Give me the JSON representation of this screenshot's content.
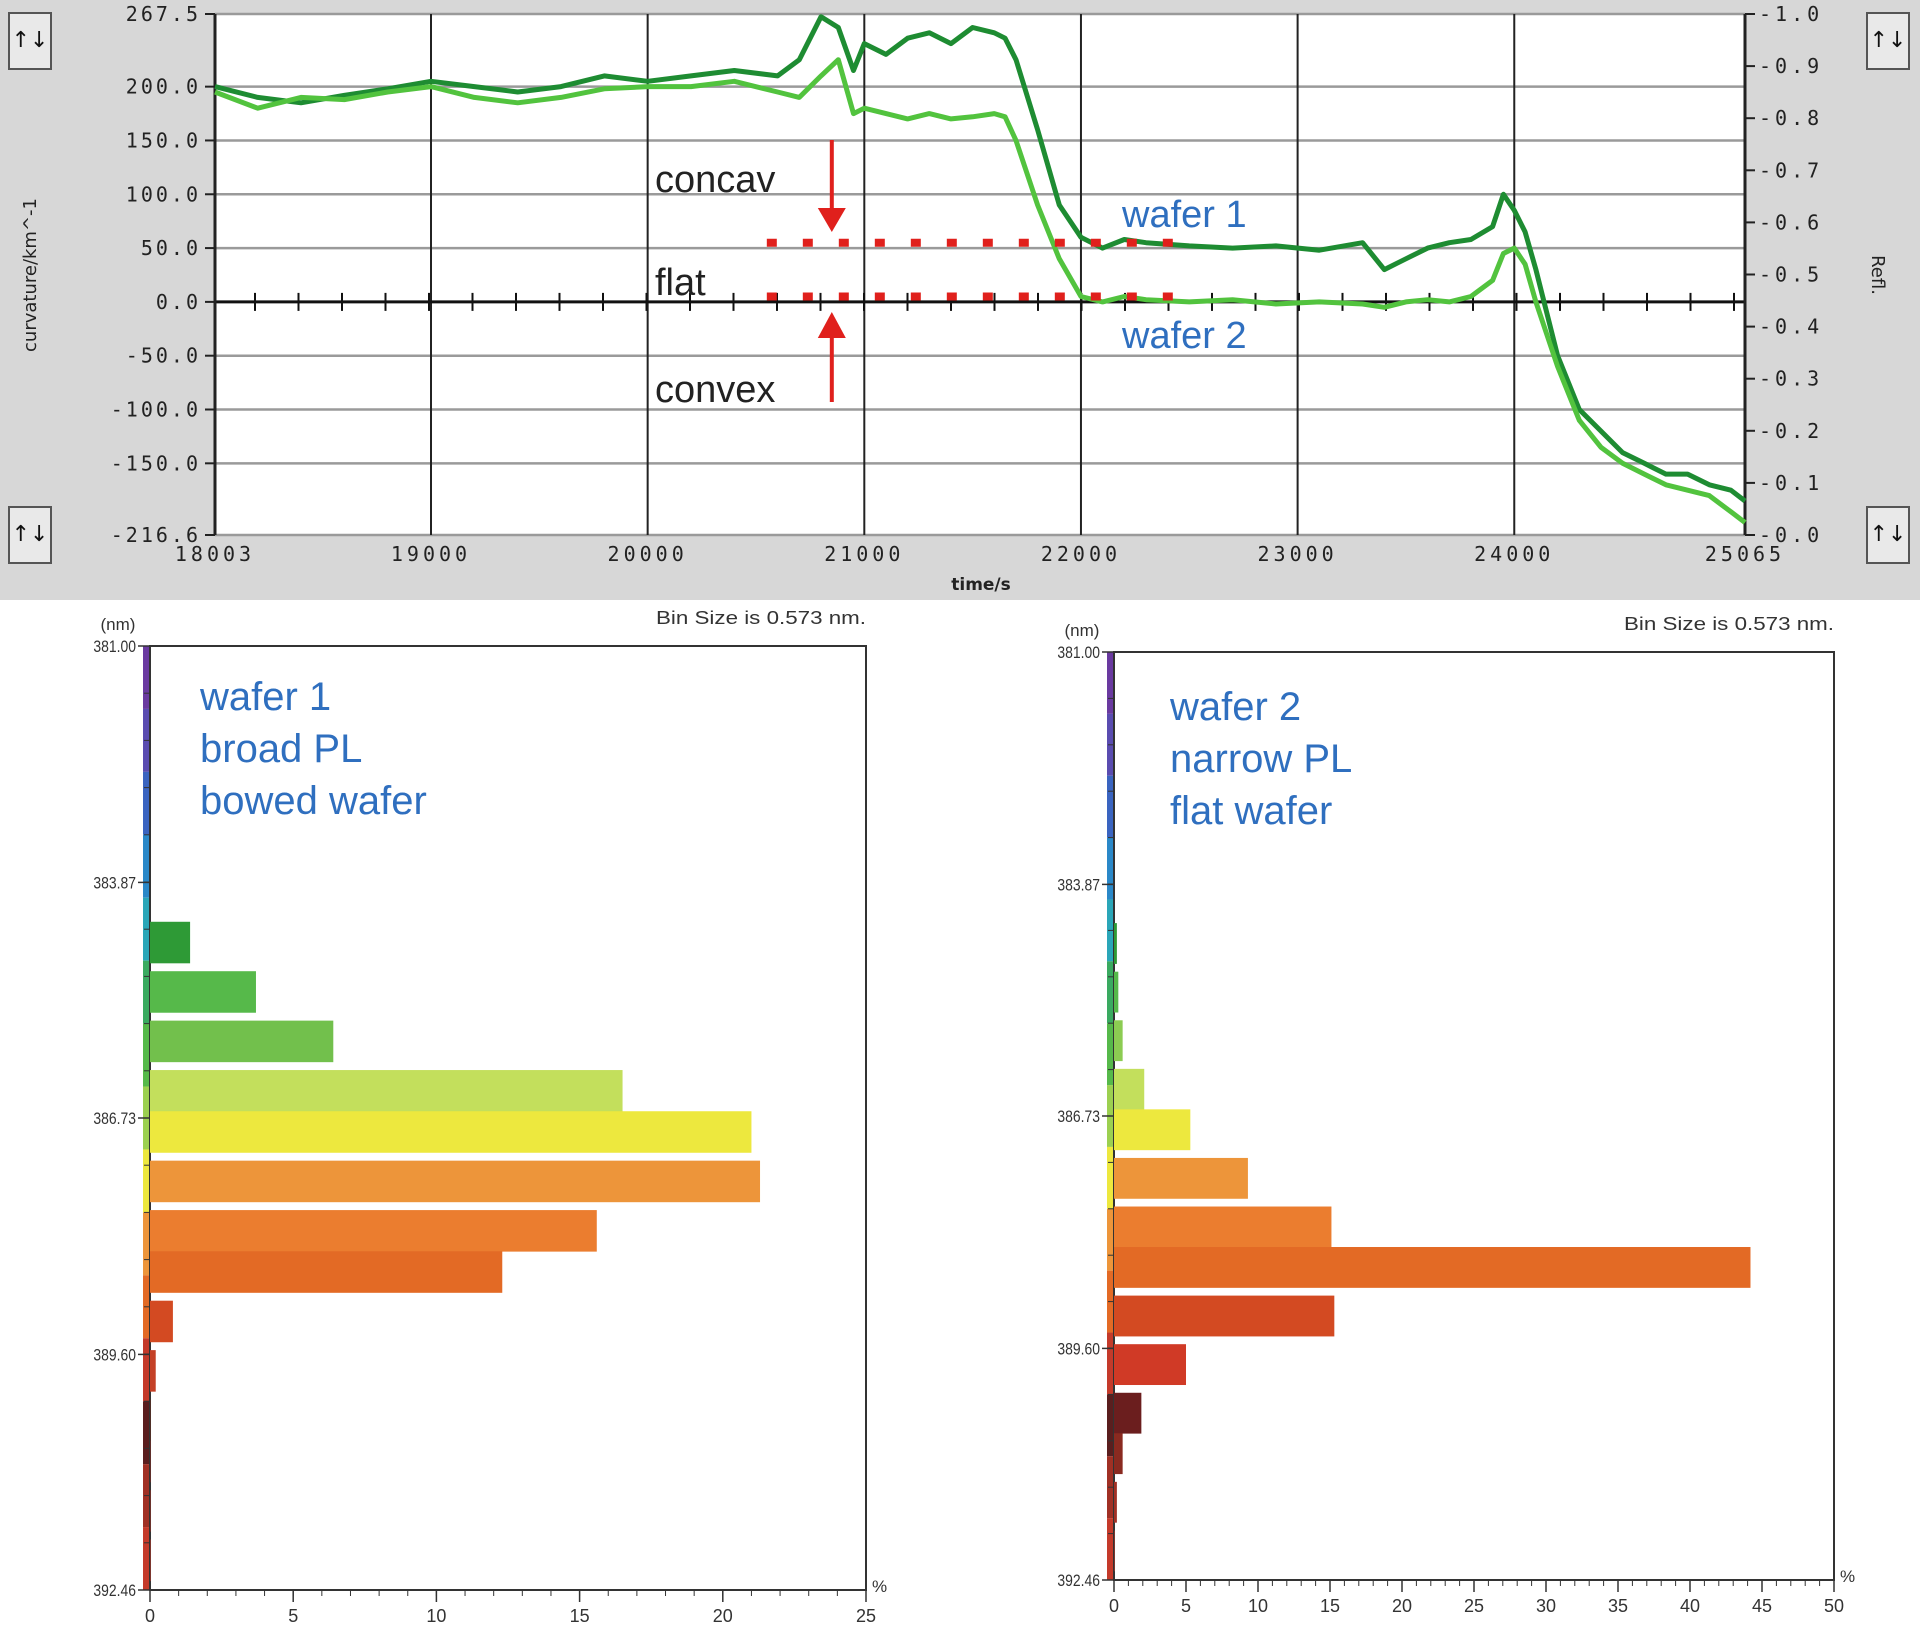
{
  "top_chart": {
    "y_left_label": "curvature/km^-1",
    "y_right_label": "Refl.",
    "x_label": "time/s",
    "y_left_ticks": [
      "267.5",
      "200.0",
      "150.0",
      "100.0",
      "50.0",
      "0.0",
      "-50.0",
      "-100.0",
      "-150.0",
      "-216.6"
    ],
    "y_right_ticks": [
      "1.0",
      "0.9",
      "0.8",
      "0.7",
      "0.6",
      "0.5",
      "0.4",
      "0.3",
      "0.2",
      "0.1",
      "0.0"
    ],
    "x_ticks": [
      "18003",
      "19000",
      "20000",
      "21000",
      "22000",
      "23000",
      "24000",
      "25065"
    ],
    "annotations": {
      "concave": "concav",
      "flat": "flat",
      "convex": "convex",
      "wafer1": "wafer 1",
      "wafer2": "wafer 2"
    },
    "controls": {
      "top_left": "↑↓",
      "bottom_left": "↑↓",
      "top_right": "↑↓",
      "bottom_right": "↑↓"
    }
  },
  "chart_data": [
    {
      "type": "line",
      "x_label": "time/s",
      "y_label": "curvature/km^-1",
      "xlim": [
        18003,
        25065
      ],
      "ylim": [
        -216.6,
        267.5
      ],
      "grid": true,
      "series": [
        {
          "name": "wafer 1",
          "color": "#1e8c32",
          "x": [
            18003,
            18200,
            18400,
            18600,
            18800,
            19000,
            19200,
            19400,
            19600,
            19800,
            20000,
            20200,
            20400,
            20600,
            20700,
            20800,
            20880,
            20950,
            21000,
            21100,
            21200,
            21300,
            21400,
            21500,
            21600,
            21650,
            21700,
            21800,
            21900,
            22000,
            22100,
            22200,
            22300,
            22500,
            22700,
            22900,
            23100,
            23300,
            23400,
            23500,
            23600,
            23700,
            23800,
            23900,
            23950,
            24000,
            24050,
            24100,
            24200,
            24300,
            24400,
            24500,
            24600,
            24700,
            24800,
            24900,
            25000,
            25065
          ],
          "y": [
            200,
            190,
            185,
            192,
            198,
            205,
            200,
            195,
            200,
            210,
            205,
            210,
            215,
            210,
            225,
            265,
            255,
            215,
            240,
            230,
            245,
            250,
            240,
            255,
            250,
            245,
            225,
            160,
            90,
            60,
            50,
            58,
            55,
            52,
            50,
            52,
            48,
            55,
            30,
            40,
            50,
            55,
            58,
            70,
            100,
            85,
            65,
            30,
            -50,
            -100,
            -120,
            -140,
            -150,
            -160,
            -160,
            -170,
            -175,
            -185
          ]
        },
        {
          "name": "wafer 2",
          "color": "#52c33e",
          "x": [
            18003,
            18200,
            18400,
            18600,
            18800,
            19000,
            19200,
            19400,
            19600,
            19800,
            20000,
            20200,
            20400,
            20600,
            20700,
            20800,
            20880,
            20950,
            21000,
            21100,
            21200,
            21300,
            21400,
            21500,
            21600,
            21650,
            21700,
            21800,
            21900,
            22000,
            22100,
            22200,
            22300,
            22500,
            22700,
            22900,
            23100,
            23300,
            23400,
            23500,
            23600,
            23700,
            23800,
            23900,
            23950,
            24000,
            24050,
            24100,
            24200,
            24300,
            24400,
            24500,
            24600,
            24700,
            24800,
            24900,
            25000,
            25065
          ],
          "y": [
            195,
            180,
            190,
            188,
            195,
            200,
            190,
            185,
            190,
            198,
            200,
            200,
            205,
            195,
            190,
            210,
            225,
            175,
            180,
            175,
            170,
            175,
            170,
            172,
            175,
            172,
            150,
            90,
            40,
            5,
            0,
            5,
            2,
            0,
            2,
            -2,
            0,
            -2,
            -5,
            0,
            2,
            0,
            5,
            20,
            45,
            50,
            35,
            0,
            -60,
            -110,
            -135,
            -150,
            -160,
            -170,
            -175,
            -180,
            -195,
            -205
          ]
        }
      ]
    },
    {
      "type": "bar",
      "orientation": "horizontal",
      "title": "wafer 1\nbroad PL\nbowed wafer",
      "note": "Bin Size is 0.573 nm.",
      "y_unit": "(nm)",
      "x_unit": "%",
      "y_ticks": [
        "381.00",
        "383.87",
        "386.73",
        "389.60",
        "392.46"
      ],
      "x_ticks": [
        "0",
        "5",
        "10",
        "15",
        "20",
        "25"
      ],
      "xlim": [
        0,
        25
      ],
      "ylim": [
        381.0,
        392.46
      ],
      "categories": [
        384.6,
        385.2,
        385.8,
        386.4,
        386.9,
        387.5,
        388.1,
        388.6,
        389.2,
        389.8,
        390.4,
        390.9,
        391.5,
        392.1
      ],
      "values": [
        1.4,
        3.7,
        6.4,
        16.5,
        21.0,
        21.3,
        15.6,
        12.3,
        0.8,
        0.2,
        0.0,
        0.0,
        0.0,
        0.0
      ],
      "colors": [
        "#2e9a36",
        "#56b94a",
        "#72c04c",
        "#c3df5c",
        "#ede83e",
        "#ed953a",
        "#eb7d2f",
        "#e36a25",
        "#d34a22",
        "#c44026",
        "#6a2a1a",
        "#8a2a20",
        "#a03024",
        "#c43a2a"
      ]
    },
    {
      "type": "bar",
      "orientation": "horizontal",
      "title": "wafer 2\nnarrow PL\nflat wafer",
      "note": "Bin Size is 0.573 nm.",
      "y_unit": "(nm)",
      "x_unit": "%",
      "y_ticks": [
        "381.00",
        "383.87",
        "386.73",
        "389.60",
        "392.46"
      ],
      "x_ticks": [
        "0",
        "5",
        "10",
        "15",
        "20",
        "25",
        "30",
        "35",
        "40",
        "45",
        "50"
      ],
      "xlim": [
        0,
        50
      ],
      "ylim": [
        381.0,
        392.46
      ],
      "categories": [
        384.6,
        385.2,
        385.8,
        386.4,
        386.9,
        387.5,
        388.1,
        388.6,
        389.2,
        389.8,
        390.4,
        390.9,
        391.5,
        392.1
      ],
      "values": [
        0.2,
        0.3,
        0.6,
        2.1,
        5.3,
        9.3,
        15.1,
        44.2,
        15.3,
        5.0,
        1.9,
        0.6,
        0.2,
        0.0
      ],
      "colors": [
        "#2e9a36",
        "#56b94a",
        "#8ccc52",
        "#c3df5c",
        "#ede83e",
        "#ed953a",
        "#eb7d2f",
        "#e36a25",
        "#d34a22",
        "#d03a26",
        "#6b1e1e",
        "#8a2a20",
        "#a03024",
        "#c43a2a"
      ]
    }
  ]
}
